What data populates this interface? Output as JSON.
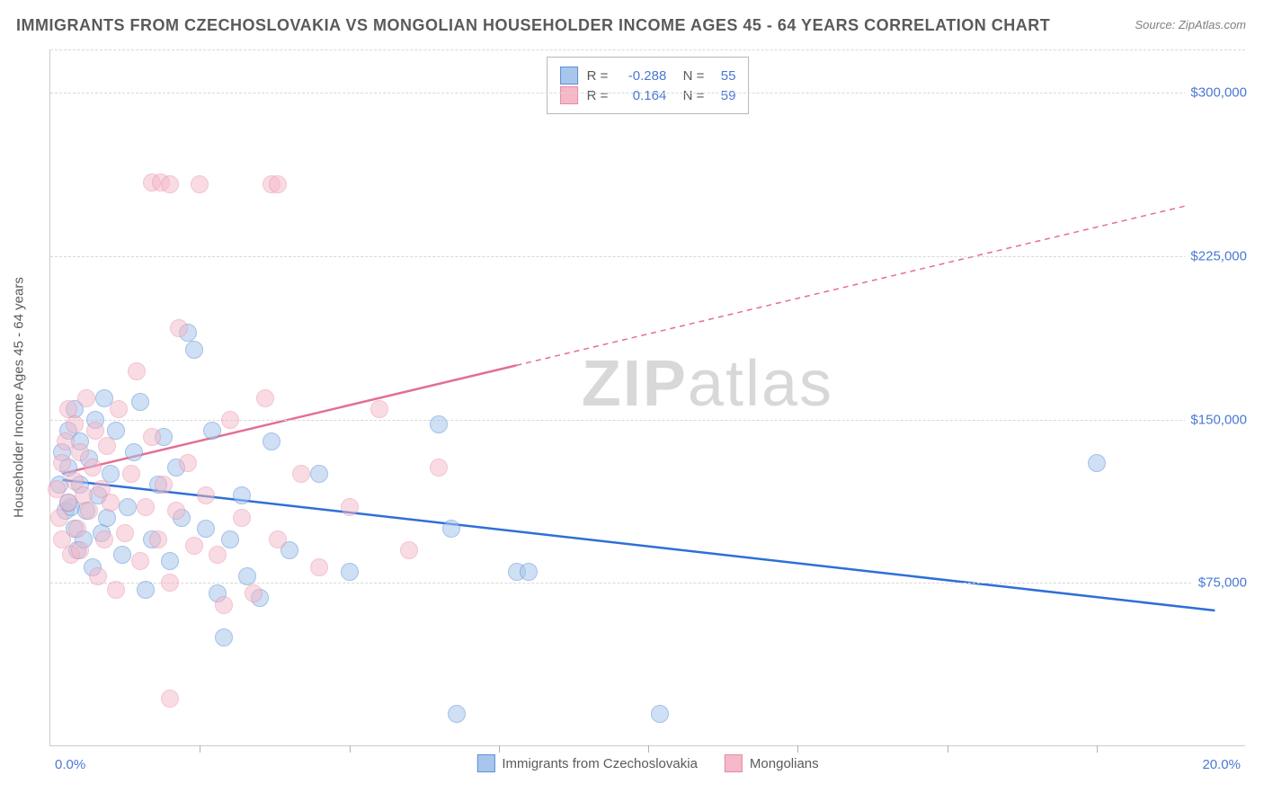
{
  "title": "IMMIGRANTS FROM CZECHOSLOVAKIA VS MONGOLIAN HOUSEHOLDER INCOME AGES 45 - 64 YEARS CORRELATION CHART",
  "source": "Source: ZipAtlas.com",
  "watermark_bold": "ZIP",
  "watermark_thin": "atlas",
  "chart": {
    "type": "scatter",
    "background_color": "#ffffff",
    "grid_color": "#d8d8d8",
    "axis_color": "#cccccc",
    "label_color": "#5a5a5a",
    "tick_value_color": "#4a78d6",
    "yaxis_label": "Householder Income Ages 45 - 64 years",
    "xlim": [
      0.0,
      20.0
    ],
    "ylim": [
      0,
      320000
    ],
    "xaxis_min_label": "0.0%",
    "xaxis_max_label": "20.0%",
    "xtick_positions": [
      2.5,
      5.0,
      7.5,
      10.0,
      12.5,
      15.0,
      17.5
    ],
    "ytick_values": [
      75000,
      150000,
      225000,
      300000
    ],
    "ytick_labels": [
      "$75,000",
      "$150,000",
      "$225,000",
      "$300,000"
    ],
    "marker_radius": 10,
    "marker_stroke_width": 1,
    "trend_line_width": 2.5,
    "series": [
      {
        "name": "Immigrants from Czechoslovakia",
        "short": "czech",
        "fill_color": "#a8c6ec",
        "fill_opacity": 0.55,
        "stroke_color": "#5b8fd6",
        "line_color": "#2e6fd8",
        "r_value": "-0.288",
        "n_value": "55",
        "trend": {
          "x1": 0.2,
          "y1": 122000,
          "x2": 19.5,
          "y2": 62000,
          "dashed_from": null
        },
        "points": [
          [
            0.15,
            120000
          ],
          [
            0.2,
            135000
          ],
          [
            0.25,
            108000
          ],
          [
            0.3,
            128000
          ],
          [
            0.3,
            145000
          ],
          [
            0.35,
            110000
          ],
          [
            0.4,
            100000
          ],
          [
            0.4,
            155000
          ],
          [
            0.45,
            90000
          ],
          [
            0.5,
            140000
          ],
          [
            0.5,
            120000
          ],
          [
            0.55,
            95000
          ],
          [
            0.6,
            108000
          ],
          [
            0.65,
            132000
          ],
          [
            0.7,
            82000
          ],
          [
            0.75,
            150000
          ],
          [
            0.8,
            115000
          ],
          [
            0.85,
            98000
          ],
          [
            0.9,
            160000
          ],
          [
            0.95,
            105000
          ],
          [
            1.0,
            125000
          ],
          [
            1.1,
            145000
          ],
          [
            1.2,
            88000
          ],
          [
            1.3,
            110000
          ],
          [
            1.4,
            135000
          ],
          [
            1.5,
            158000
          ],
          [
            1.6,
            72000
          ],
          [
            1.7,
            95000
          ],
          [
            1.8,
            120000
          ],
          [
            1.9,
            142000
          ],
          [
            2.0,
            85000
          ],
          [
            2.1,
            128000
          ],
          [
            2.2,
            105000
          ],
          [
            2.3,
            190000
          ],
          [
            2.4,
            182000
          ],
          [
            2.6,
            100000
          ],
          [
            2.7,
            145000
          ],
          [
            2.8,
            70000
          ],
          [
            2.9,
            50000
          ],
          [
            3.0,
            95000
          ],
          [
            3.2,
            115000
          ],
          [
            3.3,
            78000
          ],
          [
            3.5,
            68000
          ],
          [
            3.7,
            140000
          ],
          [
            4.0,
            90000
          ],
          [
            4.5,
            125000
          ],
          [
            5.0,
            80000
          ],
          [
            6.5,
            148000
          ],
          [
            6.7,
            100000
          ],
          [
            7.8,
            80000
          ],
          [
            8.0,
            80000
          ],
          [
            6.8,
            15000
          ],
          [
            10.2,
            15000
          ],
          [
            17.5,
            130000
          ],
          [
            0.3,
            112000
          ]
        ]
      },
      {
        "name": "Mongolians",
        "short": "mongolian",
        "fill_color": "#f5b8c8",
        "fill_opacity": 0.5,
        "stroke_color": "#e88aa5",
        "line_color": "#e36f92",
        "r_value": "0.164",
        "n_value": "59",
        "trend": {
          "x1": 0.2,
          "y1": 125000,
          "x2": 19.0,
          "y2": 248000,
          "dashed_from": 7.8
        },
        "points": [
          [
            0.1,
            118000
          ],
          [
            0.15,
            105000
          ],
          [
            0.2,
            130000
          ],
          [
            0.2,
            95000
          ],
          [
            0.25,
            140000
          ],
          [
            0.3,
            112000
          ],
          [
            0.3,
            155000
          ],
          [
            0.35,
            88000
          ],
          [
            0.4,
            122000
          ],
          [
            0.4,
            148000
          ],
          [
            0.45,
            100000
          ],
          [
            0.5,
            135000
          ],
          [
            0.5,
            90000
          ],
          [
            0.55,
            115000
          ],
          [
            0.6,
            160000
          ],
          [
            0.65,
            108000
          ],
          [
            0.7,
            128000
          ],
          [
            0.75,
            145000
          ],
          [
            0.8,
            78000
          ],
          [
            0.85,
            118000
          ],
          [
            0.9,
            95000
          ],
          [
            0.95,
            138000
          ],
          [
            1.0,
            112000
          ],
          [
            1.1,
            72000
          ],
          [
            1.15,
            155000
          ],
          [
            1.25,
            98000
          ],
          [
            1.35,
            125000
          ],
          [
            1.45,
            172000
          ],
          [
            1.5,
            85000
          ],
          [
            1.6,
            110000
          ],
          [
            1.7,
            142000
          ],
          [
            1.7,
            259000
          ],
          [
            1.85,
            259000
          ],
          [
            1.8,
            95000
          ],
          [
            1.9,
            120000
          ],
          [
            2.0,
            258000
          ],
          [
            2.0,
            75000
          ],
          [
            2.1,
            108000
          ],
          [
            2.15,
            192000
          ],
          [
            2.3,
            130000
          ],
          [
            2.4,
            92000
          ],
          [
            2.5,
            258000
          ],
          [
            2.6,
            115000
          ],
          [
            2.8,
            88000
          ],
          [
            3.0,
            150000
          ],
          [
            3.2,
            105000
          ],
          [
            3.4,
            70000
          ],
          [
            3.6,
            160000
          ],
          [
            3.7,
            258000
          ],
          [
            3.8,
            258000
          ],
          [
            3.8,
            95000
          ],
          [
            4.2,
            125000
          ],
          [
            4.5,
            82000
          ],
          [
            5.0,
            110000
          ],
          [
            5.5,
            155000
          ],
          [
            6.0,
            90000
          ],
          [
            6.5,
            128000
          ],
          [
            2.0,
            22000
          ],
          [
            2.9,
            65000
          ]
        ]
      }
    ]
  },
  "bottom_legend": [
    {
      "label": "Immigrants from Czechoslovakia",
      "fill": "#a8c6ec",
      "stroke": "#5b8fd6"
    },
    {
      "label": "Mongolians",
      "fill": "#f5b8c8",
      "stroke": "#e88aa5"
    }
  ]
}
